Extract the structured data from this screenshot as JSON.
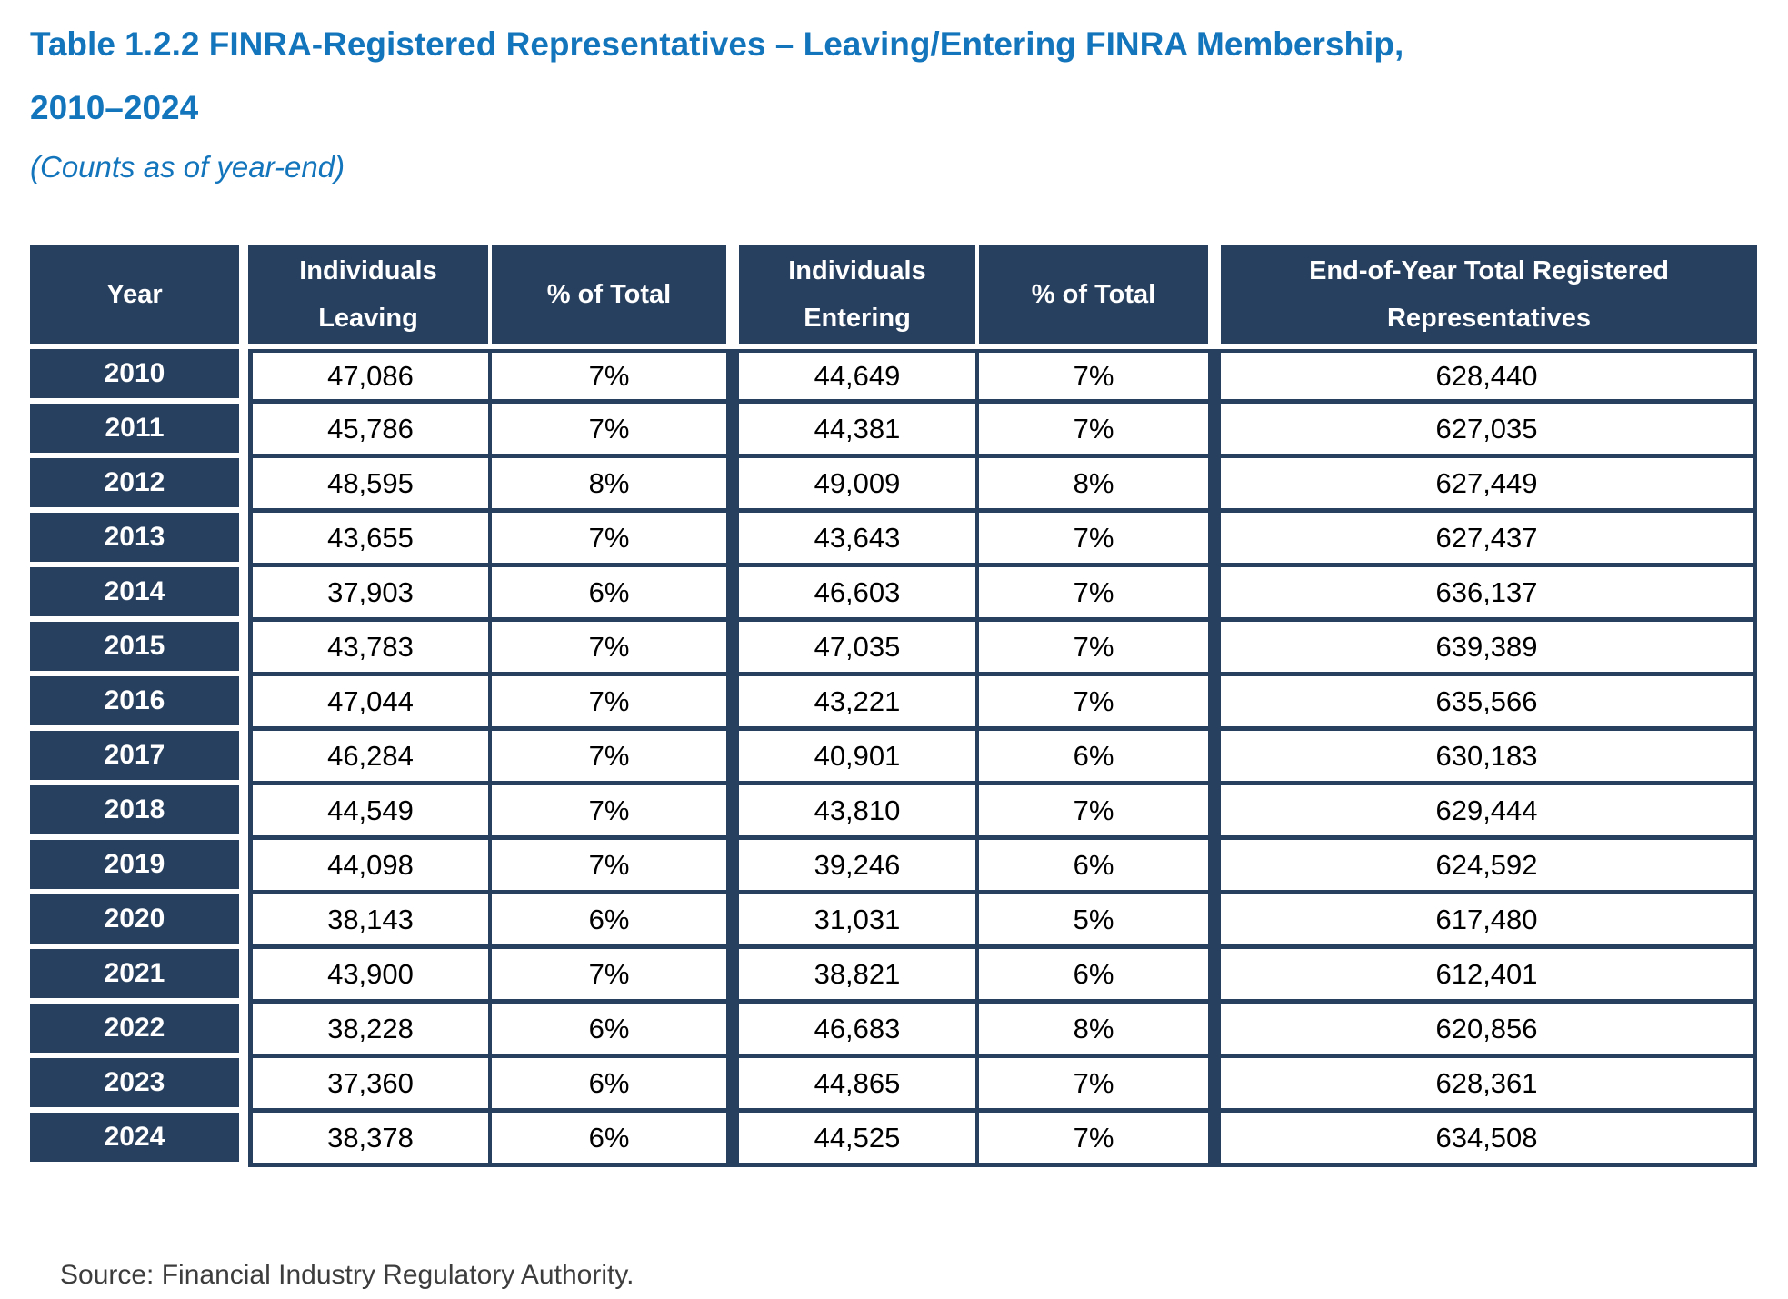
{
  "title": "Table 1.2.2 FINRA-Registered Representatives – Leaving/Entering FINRA Membership,\n2010–2024",
  "subtitle": "(Counts as of year-end)",
  "table": {
    "columns": [
      "Year",
      "Individuals Leaving",
      "% of Total",
      "Individuals Entering",
      "% of Total",
      "End-of-Year Total Registered Representatives"
    ],
    "rows": [
      [
        "2010",
        "47,086",
        "7%",
        "44,649",
        "7%",
        "628,440"
      ],
      [
        "2011",
        "45,786",
        "7%",
        "44,381",
        "7%",
        "627,035"
      ],
      [
        "2012",
        "48,595",
        "8%",
        "49,009",
        "8%",
        "627,449"
      ],
      [
        "2013",
        "43,655",
        "7%",
        "43,643",
        "7%",
        "627,437"
      ],
      [
        "2014",
        "37,903",
        "6%",
        "46,603",
        "7%",
        "636,137"
      ],
      [
        "2015",
        "43,783",
        "7%",
        "47,035",
        "7%",
        "639,389"
      ],
      [
        "2016",
        "47,044",
        "7%",
        "43,221",
        "7%",
        "635,566"
      ],
      [
        "2017",
        "46,284",
        "7%",
        "40,901",
        "6%",
        "630,183"
      ],
      [
        "2018",
        "44,549",
        "7%",
        "43,810",
        "7%",
        "629,444"
      ],
      [
        "2019",
        "44,098",
        "7%",
        "39,246",
        "6%",
        "624,592"
      ],
      [
        "2020",
        "38,143",
        "6%",
        "31,031",
        "5%",
        "617,480"
      ],
      [
        "2021",
        "43,900",
        "7%",
        "38,821",
        "6%",
        "612,401"
      ],
      [
        "2022",
        "38,228",
        "6%",
        "46,683",
        "8%",
        "620,856"
      ],
      [
        "2023",
        "37,360",
        "6%",
        "44,865",
        "7%",
        "628,361"
      ],
      [
        "2024",
        "38,378",
        "6%",
        "44,525",
        "7%",
        "634,508"
      ]
    ]
  },
  "source": "Source: Financial Industry Regulatory Authority.",
  "colors": {
    "navy": "#28405f",
    "title_blue": "#1375bc",
    "body_text": "#000000",
    "source_text": "#3d3d3d"
  }
}
